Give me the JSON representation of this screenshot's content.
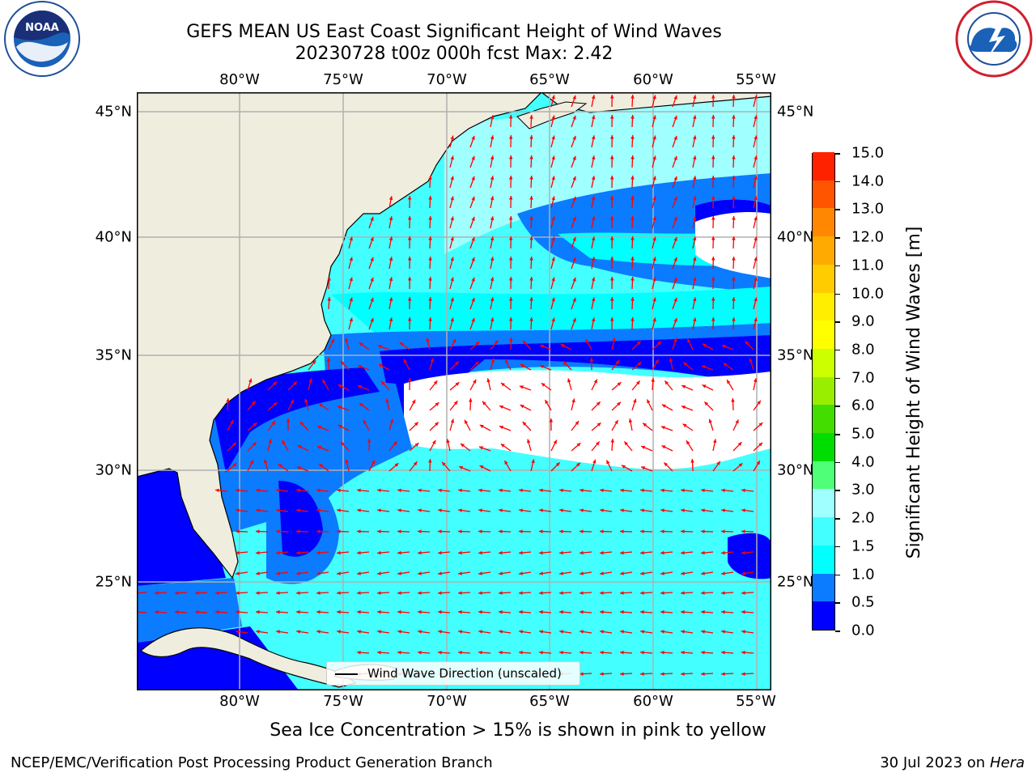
{
  "title": {
    "line1": "GEFS MEAN US East Coast Significant Height of Wind Waves",
    "line2": "20230728 t00z 000h fcst    Max: 2.42"
  },
  "map": {
    "lon_labels": [
      "80°W",
      "75°W",
      "70°W",
      "65°W",
      "60°W",
      "55°W"
    ],
    "lat_labels": [
      "45°N",
      "40°N",
      "35°N",
      "30°N",
      "25°N"
    ],
    "legend_label": "Wind Wave Direction (unscaled)",
    "land_color": "#efedde",
    "arrow_color": "#ff0000",
    "coast_color": "#000000",
    "grid_color": "#b0b0b0"
  },
  "colorbar": {
    "title": "Significant Height of Wind Waves [m]",
    "tick_labels": [
      "0.0",
      "0.5",
      "1.0",
      "1.5",
      "2.0",
      "3.0",
      "4.0",
      "5.0",
      "6.0",
      "7.0",
      "8.0",
      "9.0",
      "10.0",
      "11.0",
      "12.0",
      "13.0",
      "14.0",
      "15.0"
    ],
    "colors": [
      "#0000ff",
      "#0b7bff",
      "#00ffff",
      "#44ffff",
      "#a0ffff",
      "#50ff78",
      "#00dd00",
      "#44dd00",
      "#99ee00",
      "#ccff00",
      "#ffff00",
      "#ffee00",
      "#ffcc00",
      "#ffaa00",
      "#ff8800",
      "#ff5500",
      "#ff2200",
      "#ff0000"
    ]
  },
  "ice_note": "Sea Ice Concentration > 15% is shown in pink to yellow",
  "footer": {
    "left": "NCEP/EMC/Verification Post Processing Product Generation Branch",
    "date": "30 Jul 2023 on",
    "host": "Hera"
  },
  "logos": {
    "left": "noaa-logo",
    "right": "nws-logo"
  }
}
